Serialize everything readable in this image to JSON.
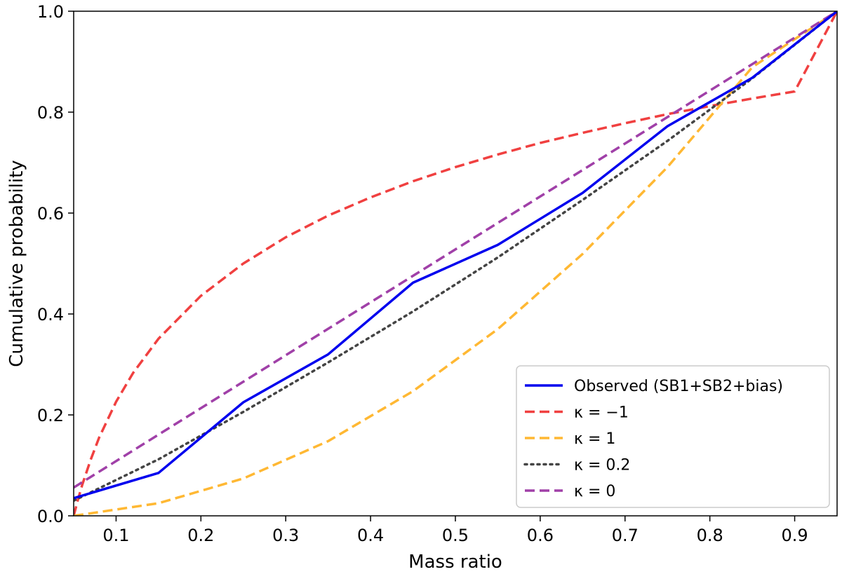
{
  "chart_data": {
    "type": "line",
    "title": "",
    "xlabel": "Mass ratio",
    "ylabel": "Cumulative probability",
    "xlim": [
      0.05,
      0.95
    ],
    "ylim": [
      0.0,
      1.0
    ],
    "x_ticks": [
      0.1,
      0.2,
      0.3,
      0.4,
      0.5,
      0.6,
      0.7,
      0.8,
      0.9
    ],
    "x_tick_labels": [
      "0.1",
      "0.2",
      "0.3",
      "0.4",
      "0.5",
      "0.6",
      "0.7",
      "0.8",
      "0.9"
    ],
    "y_ticks": [
      0.0,
      0.2,
      0.4,
      0.6,
      0.8,
      1.0
    ],
    "y_tick_labels": [
      "0.0",
      "0.2",
      "0.4",
      "0.6",
      "0.8",
      "1.0"
    ],
    "grid": false,
    "legend_position": "bottom-right",
    "series": [
      {
        "name": "Observed (SB1+SB2+bias)",
        "color": "#0000ee",
        "style": "solid",
        "x": [
          0.05,
          0.15,
          0.25,
          0.35,
          0.45,
          0.55,
          0.65,
          0.75,
          0.85,
          0.95
        ],
        "y": [
          0.035,
          0.085,
          0.225,
          0.32,
          0.462,
          0.537,
          0.64,
          0.772,
          0.868,
          1.0
        ]
      },
      {
        "name": "κ = −1",
        "color": "#f04040",
        "style": "dashed",
        "x": [
          0.05,
          0.055,
          0.06,
          0.07,
          0.08,
          0.1,
          0.12,
          0.15,
          0.2,
          0.25,
          0.3,
          0.35,
          0.4,
          0.45,
          0.5,
          0.55,
          0.6,
          0.65,
          0.7,
          0.75,
          0.8,
          0.85,
          0.9,
          0.95
        ],
        "y": [
          0.0,
          0.032,
          0.061,
          0.111,
          0.155,
          0.226,
          0.283,
          0.351,
          0.436,
          0.5,
          0.552,
          0.595,
          0.631,
          0.663,
          0.691,
          0.716,
          0.739,
          0.759,
          0.778,
          0.796,
          0.812,
          0.827,
          0.841,
          1.0
        ]
      },
      {
        "name": "κ = 1",
        "color": "#ffb833",
        "style": "dashed",
        "x": [
          0.05,
          0.15,
          0.25,
          0.35,
          0.45,
          0.55,
          0.65,
          0.75,
          0.85,
          0.95
        ],
        "y": [
          0.0,
          0.025,
          0.074,
          0.148,
          0.247,
          0.37,
          0.519,
          0.691,
          0.889,
          1.0
        ]
      },
      {
        "name": "κ = 0.2",
        "color": "#444444",
        "style": "dotted",
        "x": [
          0.05,
          0.15,
          0.25,
          0.35,
          0.45,
          0.55,
          0.65,
          0.75,
          0.85,
          0.95
        ],
        "y": [
          0.03,
          0.112,
          0.206,
          0.304,
          0.405,
          0.512,
          0.626,
          0.743,
          0.867,
          1.0
        ]
      },
      {
        "name": "κ = 0",
        "color": "#a040a8",
        "style": "dashed",
        "x": [
          0.05,
          0.95
        ],
        "y": [
          0.056,
          1.0
        ]
      }
    ],
    "legend": [
      {
        "label": "Observed (SB1+SB2+bias)",
        "color": "#0000ee",
        "style": "solid"
      },
      {
        "label": "κ = −1",
        "color": "#f04040",
        "style": "dashed"
      },
      {
        "label": "κ = 1",
        "color": "#ffb833",
        "style": "dashed"
      },
      {
        "label": "κ = 0.2",
        "color": "#444444",
        "style": "dotted"
      },
      {
        "label": "κ = 0",
        "color": "#a040a8",
        "style": "dashed"
      }
    ]
  }
}
